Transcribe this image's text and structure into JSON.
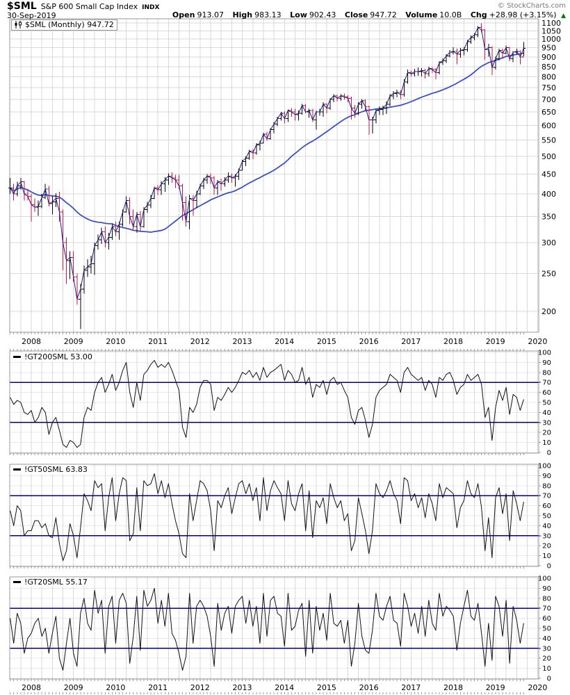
{
  "header": {
    "symbol": "$SML",
    "name": "S&P 600 Small Cap Index",
    "exchange": "INDX",
    "copyright": "© StockCharts.com",
    "date": "30-Sep-2019",
    "quote": {
      "open_label": "Open",
      "open": "913.07",
      "high_label": "High",
      "high": "983.13",
      "low_label": "Low",
      "low": "902.43",
      "close_label": "Close",
      "close": "947.72",
      "volume_label": "Volume",
      "volume": "10.0B",
      "chg_label": "Chg",
      "chg": "+28.98 (+3.15%)",
      "direction": "▲"
    }
  },
  "colors": {
    "up_bar": "#000000",
    "down_bar": "#cc1144",
    "close_line": "#1a1a90",
    "ma_line": "#3a50c8",
    "indicator_line": "#111111",
    "hline_blue": "#000080",
    "grid": "#d9d9d9",
    "grid_light": "#e9e9e9",
    "frame": "#999999",
    "up_arrow": "#007700"
  },
  "axis": {
    "years": [
      2008,
      2009,
      2010,
      2011,
      2012,
      2013,
      2014,
      2015,
      2016,
      2017,
      2018,
      2019,
      2020
    ],
    "price_ticks": [
      1100,
      1050,
      1000,
      950,
      900,
      850,
      800,
      750,
      700,
      650,
      600,
      550,
      500,
      450,
      400,
      350,
      300,
      250,
      200
    ],
    "panel_ticks": [
      100,
      90,
      80,
      70,
      60,
      50,
      40,
      30,
      20,
      10,
      0
    ]
  },
  "chart_data": [
    {
      "type": "ohlc",
      "label": "$SML (Monthly) 947.72",
      "symbol": "$SML",
      "timeframe": "Monthly",
      "start": "2007-07",
      "end": "2019-09",
      "scale": "log",
      "last_close": 947.72,
      "ma_overlay_period": 30,
      "hlc": [
        [
          440,
          400,
          415
        ],
        [
          425,
          385,
          400
        ],
        [
          430,
          395,
          420
        ],
        [
          440,
          410,
          430
        ],
        [
          432,
          385,
          400
        ],
        [
          412,
          385,
          395
        ],
        [
          400,
          340,
          376
        ],
        [
          390,
          360,
          370
        ],
        [
          385,
          352,
          372
        ],
        [
          400,
          368,
          392
        ],
        [
          425,
          388,
          412
        ],
        [
          420,
          372,
          378
        ],
        [
          395,
          355,
          382
        ],
        [
          402,
          370,
          390
        ],
        [
          405,
          340,
          360
        ],
        [
          365,
          255,
          300
        ],
        [
          310,
          235,
          270
        ],
        [
          285,
          242,
          275
        ],
        [
          285,
          238,
          245
        ],
        [
          250,
          208,
          215
        ],
        [
          235,
          180,
          228
        ],
        [
          262,
          222,
          255
        ],
        [
          272,
          245,
          260
        ],
        [
          278,
          250,
          265
        ],
        [
          300,
          248,
          295
        ],
        [
          315,
          288,
          305
        ],
        [
          328,
          298,
          320
        ],
        [
          330,
          292,
          300
        ],
        [
          318,
          288,
          310
        ],
        [
          335,
          305,
          330
        ],
        [
          340,
          312,
          320
        ],
        [
          340,
          305,
          335
        ],
        [
          365,
          330,
          360
        ],
        [
          395,
          358,
          385
        ],
        [
          392,
          335,
          350
        ],
        [
          365,
          322,
          330
        ],
        [
          360,
          318,
          355
        ],
        [
          362,
          322,
          330
        ],
        [
          370,
          328,
          365
        ],
        [
          382,
          358,
          375
        ],
        [
          398,
          368,
          390
        ],
        [
          418,
          388,
          415
        ],
        [
          422,
          398,
          410
        ],
        [
          432,
          398,
          425
        ],
        [
          442,
          405,
          435
        ],
        [
          452,
          422,
          445
        ],
        [
          455,
          428,
          440
        ],
        [
          448,
          415,
          435
        ],
        [
          448,
          412,
          420
        ],
        [
          425,
          342,
          380
        ],
        [
          395,
          330,
          340
        ],
        [
          398,
          325,
          390
        ],
        [
          398,
          352,
          385
        ],
        [
          408,
          368,
          400
        ],
        [
          425,
          398,
          420
        ],
        [
          440,
          412,
          435
        ],
        [
          450,
          425,
          445
        ],
        [
          452,
          425,
          440
        ],
        [
          445,
          398,
          415
        ],
        [
          435,
          398,
          430
        ],
        [
          438,
          408,
          425
        ],
        [
          442,
          418,
          435
        ],
        [
          455,
          428,
          445
        ],
        [
          452,
          428,
          440
        ],
        [
          450,
          418,
          445
        ],
        [
          465,
          435,
          460
        ],
        [
          490,
          460,
          485
        ],
        [
          500,
          472,
          495
        ],
        [
          520,
          490,
          515
        ],
        [
          522,
          492,
          510
        ],
        [
          540,
          505,
          535
        ],
        [
          548,
          518,
          540
        ],
        [
          575,
          540,
          570
        ],
        [
          578,
          548,
          555
        ],
        [
          590,
          552,
          585
        ],
        [
          612,
          572,
          605
        ],
        [
          632,
          598,
          625
        ],
        [
          650,
          618,
          645
        ],
        [
          652,
          608,
          625
        ],
        [
          660,
          612,
          655
        ],
        [
          665,
          632,
          650
        ],
        [
          662,
          618,
          640
        ],
        [
          655,
          618,
          645
        ],
        [
          682,
          640,
          675
        ],
        [
          680,
          645,
          650
        ],
        [
          662,
          628,
          655
        ],
        [
          662,
          612,
          620
        ],
        [
          655,
          585,
          650
        ],
        [
          662,
          635,
          650
        ],
        [
          688,
          632,
          680
        ],
        [
          685,
          645,
          665
        ],
        [
          705,
          658,
          700
        ],
        [
          722,
          688,
          715
        ],
        [
          720,
          692,
          705
        ],
        [
          722,
          695,
          715
        ],
        [
          725,
          698,
          710
        ],
        [
          718,
          688,
          705
        ],
        [
          712,
          622,
          665
        ],
        [
          678,
          628,
          645
        ],
        [
          688,
          638,
          680
        ],
        [
          702,
          662,
          695
        ],
        [
          700,
          652,
          670
        ],
        [
          675,
          568,
          620
        ],
        [
          632,
          572,
          620
        ],
        [
          662,
          608,
          655
        ],
        [
          672,
          638,
          660
        ],
        [
          675,
          638,
          665
        ],
        [
          692,
          642,
          680
        ],
        [
          722,
          672,
          715
        ],
        [
          735,
          702,
          725
        ],
        [
          742,
          708,
          730
        ],
        [
          738,
          702,
          720
        ],
        [
          788,
          712,
          775
        ],
        [
          835,
          768,
          820
        ],
        [
          830,
          802,
          815
        ],
        [
          838,
          802,
          825
        ],
        [
          845,
          805,
          825
        ],
        [
          842,
          802,
          830
        ],
        [
          838,
          792,
          815
        ],
        [
          850,
          802,
          840
        ],
        [
          848,
          818,
          835
        ],
        [
          842,
          788,
          820
        ],
        [
          878,
          812,
          870
        ],
        [
          892,
          858,
          880
        ],
        [
          915,
          868,
          905
        ],
        [
          938,
          898,
          925
        ],
        [
          952,
          912,
          930
        ],
        [
          945,
          862,
          915
        ],
        [
          948,
          895,
          935
        ],
        [
          952,
          908,
          940
        ],
        [
          995,
          928,
          985
        ],
        [
          1022,
          972,
          1010
        ],
        [
          1035,
          992,
          1025
        ],
        [
          1080,
          1012,
          1070
        ],
        [
          1098,
          1040,
          1055
        ],
        [
          1060,
          885,
          940
        ],
        [
          972,
          902,
          950
        ],
        [
          958,
          808,
          845
        ],
        [
          902,
          835,
          890
        ],
        [
          945,
          882,
          935
        ],
        [
          945,
          892,
          920
        ],
        [
          962,
          912,
          950
        ],
        [
          955,
          878,
          890
        ],
        [
          932,
          872,
          925
        ],
        [
          945,
          912,
          930
        ],
        [
          935,
          862,
          900
        ],
        [
          983.13,
          902.43,
          947.72
        ]
      ]
    },
    {
      "type": "line",
      "label": "!GT200SML 53.00",
      "name": "!GT200SML",
      "last": 53.0,
      "ylim": [
        0,
        100
      ],
      "hlines": [
        70,
        30
      ],
      "values": [
        55,
        48,
        52,
        50,
        40,
        38,
        42,
        30,
        35,
        45,
        40,
        18,
        30,
        35,
        22,
        8,
        5,
        12,
        10,
        5,
        8,
        35,
        45,
        42,
        60,
        70,
        75,
        60,
        68,
        78,
        62,
        70,
        82,
        90,
        60,
        45,
        70,
        52,
        78,
        82,
        88,
        92,
        85,
        88,
        85,
        90,
        82,
        72,
        62,
        25,
        15,
        45,
        40,
        48,
        65,
        72,
        72,
        68,
        42,
        55,
        52,
        58,
        65,
        60,
        65,
        72,
        80,
        78,
        82,
        75,
        80,
        72,
        85,
        75,
        80,
        82,
        85,
        88,
        72,
        82,
        78,
        70,
        72,
        85,
        68,
        75,
        55,
        68,
        65,
        72,
        58,
        72,
        75,
        68,
        70,
        62,
        55,
        35,
        28,
        42,
        45,
        32,
        15,
        28,
        55,
        62,
        65,
        68,
        78,
        75,
        72,
        60,
        80,
        85,
        78,
        75,
        72,
        75,
        62,
        72,
        68,
        55,
        75,
        72,
        78,
        80,
        72,
        58,
        65,
        68,
        78,
        72,
        75,
        78,
        68,
        35,
        45,
        12,
        45,
        62,
        52,
        65,
        38,
        58,
        55,
        42,
        53
      ]
    },
    {
      "type": "line",
      "label": "!GT50SML 63.83",
      "name": "!GT50SML",
      "last": 63.83,
      "ylim": [
        0,
        100
      ],
      "hlines": [
        70,
        30
      ],
      "values": [
        55,
        40,
        60,
        55,
        30,
        35,
        35,
        45,
        45,
        38,
        42,
        30,
        28,
        48,
        22,
        5,
        15,
        42,
        30,
        8,
        38,
        72,
        65,
        55,
        85,
        78,
        82,
        35,
        68,
        88,
        45,
        72,
        88,
        85,
        25,
        32,
        78,
        35,
        85,
        80,
        82,
        92,
        72,
        85,
        68,
        82,
        62,
        45,
        32,
        12,
        8,
        72,
        45,
        65,
        85,
        82,
        75,
        55,
        15,
        65,
        58,
        70,
        78,
        52,
        68,
        82,
        85,
        72,
        82,
        65,
        78,
        45,
        88,
        55,
        75,
        85,
        78,
        72,
        45,
        85,
        62,
        55,
        72,
        82,
        35,
        75,
        28,
        65,
        58,
        68,
        42,
        82,
        68,
        58,
        65,
        45,
        52,
        15,
        25,
        68,
        52,
        35,
        12,
        35,
        82,
        72,
        68,
        75,
        85,
        72,
        65,
        42,
        88,
        85,
        65,
        72,
        58,
        68,
        48,
        72,
        62,
        45,
        82,
        68,
        78,
        75,
        72,
        38,
        58,
        65,
        85,
        72,
        68,
        82,
        58,
        15,
        48,
        8,
        68,
        78,
        52,
        72,
        25,
        75,
        62,
        45,
        63.83
      ]
    },
    {
      "type": "line",
      "label": "!GT20SML 55.17",
      "name": "!GT20SML",
      "last": 55.17,
      "ylim": [
        0,
        100
      ],
      "hlines": [
        70,
        30
      ],
      "values": [
        60,
        35,
        65,
        55,
        25,
        40,
        45,
        55,
        60,
        42,
        50,
        25,
        45,
        62,
        20,
        8,
        35,
        60,
        25,
        12,
        65,
        80,
        55,
        48,
        88,
        65,
        78,
        25,
        72,
        82,
        35,
        78,
        85,
        75,
        15,
        42,
        82,
        28,
        88,
        72,
        78,
        90,
        55,
        78,
        52,
        85,
        45,
        38,
        25,
        8,
        22,
        85,
        35,
        72,
        78,
        72,
        62,
        42,
        12,
        75,
        48,
        65,
        72,
        45,
        72,
        78,
        82,
        55,
        78,
        52,
        72,
        35,
        85,
        42,
        78,
        82,
        65,
        62,
        32,
        85,
        48,
        52,
        68,
        75,
        22,
        78,
        25,
        72,
        48,
        65,
        38,
        85,
        55,
        52,
        58,
        35,
        58,
        12,
        35,
        75,
        42,
        28,
        25,
        48,
        85,
        62,
        58,
        72,
        82,
        58,
        55,
        32,
        85,
        72,
        52,
        65,
        45,
        72,
        42,
        78,
        55,
        48,
        85,
        62,
        72,
        68,
        62,
        28,
        55,
        72,
        88,
        62,
        58,
        75,
        45,
        12,
        55,
        18,
        82,
        72,
        42,
        78,
        15,
        72,
        58,
        35,
        55.17
      ]
    }
  ]
}
